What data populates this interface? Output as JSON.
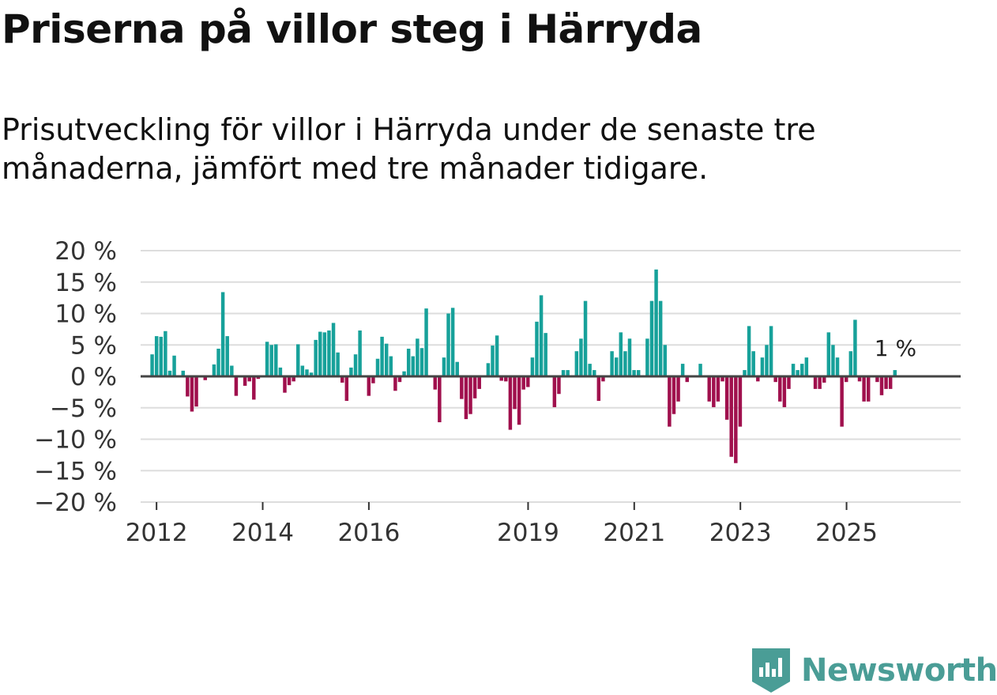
{
  "title": "Priserna på villor steg i Härryda",
  "subtitle": "Prisutveckling för villor i Härryda under de senaste tre månaderna, jämfört med tre månader tidigare.",
  "logo": {
    "text": "Newsworthy",
    "icon": "newsworthy-chart-icon"
  },
  "colors": {
    "positive": "#17a19a",
    "negative": "#a0104d",
    "zero_line": "#444444",
    "grid": "#dddddd",
    "logo": "#4a9d96"
  },
  "chart_data": {
    "type": "bar",
    "unit": "%",
    "ylim": [
      -20,
      20
    ],
    "y_ticks": [
      20,
      15,
      10,
      5,
      0,
      -5,
      -10,
      -15,
      -20
    ],
    "y_tick_labels": [
      "20 %",
      "15 %",
      "10 %",
      "5 %",
      "0 %",
      "−5 %",
      "−10 %",
      "−15 %",
      "−20 %"
    ],
    "x_ticks": [
      2012,
      2014,
      2016,
      2019,
      2021,
      2023,
      2025
    ],
    "x_tick_labels": [
      "2012",
      "2014",
      "2016",
      "2019",
      "2021",
      "2023",
      "2025"
    ],
    "xlim": [
      2011.7,
      2027.15
    ],
    "start": 2011.917,
    "step": 0.0833,
    "grid": true,
    "last_value_label": "1 %",
    "values": [
      3.5,
      6.4,
      6.3,
      7.2,
      0.9,
      3.3,
      0,
      0.9,
      -3.2,
      -5.6,
      -4.8,
      0,
      -0.6,
      0,
      1.9,
      4.4,
      13.4,
      6.4,
      1.7,
      -3.1,
      0,
      -1.5,
      -0.8,
      -3.7,
      -0.4,
      0,
      5.5,
      5.0,
      5.1,
      1.4,
      -2.6,
      -1.4,
      -0.8,
      5.1,
      1.7,
      1.1,
      0.6,
      5.8,
      7.1,
      7.0,
      7.3,
      8.5,
      3.8,
      -1.0,
      -3.9,
      1.4,
      3.5,
      7.3,
      0,
      -3.1,
      -1.1,
      2.8,
      6.3,
      5.2,
      3.2,
      -2.3,
      -0.9,
      0.8,
      4.4,
      3.2,
      6.0,
      4.5,
      10.8,
      0,
      -2.1,
      -7.3,
      3.0,
      10.0,
      10.9,
      2.3,
      -3.6,
      -6.8,
      -6.0,
      -3.5,
      -2.0,
      0,
      2.1,
      4.9,
      6.5,
      -0.7,
      -0.8,
      -8.5,
      -5.2,
      -7.7,
      -2.1,
      -1.7,
      3.0,
      8.7,
      12.9,
      6.9,
      0,
      -4.9,
      -2.8,
      1.0,
      1.0,
      0,
      4.0,
      6.0,
      12.0,
      2.0,
      1.0,
      -3.9,
      -0.8,
      0,
      4.0,
      3.0,
      7.0,
      4.0,
      6.0,
      1.0,
      1.0,
      0,
      6.0,
      12.0,
      17.0,
      12.0,
      5.0,
      -8.0,
      -6.0,
      -4.0,
      2.0,
      -0.9,
      0,
      0,
      2.0,
      0,
      -4.0,
      -4.9,
      -4.0,
      -0.8,
      -6.9,
      -12.8,
      -13.8,
      -8.0,
      1.0,
      8.0,
      4.0,
      -0.8,
      3.0,
      5.0,
      8.0,
      -0.9,
      -4.0,
      -4.9,
      -2.0,
      2.0,
      1.0,
      2.0,
      3.0,
      0,
      -2.0,
      -2.0,
      -1.0,
      7.0,
      5.0,
      3.0,
      -8.0,
      -0.9,
      4.0,
      9.0,
      -0.8,
      -4.0,
      -4.0,
      0,
      -0.9,
      -3.0,
      -2.0,
      -2.0,
      1.0
    ]
  }
}
